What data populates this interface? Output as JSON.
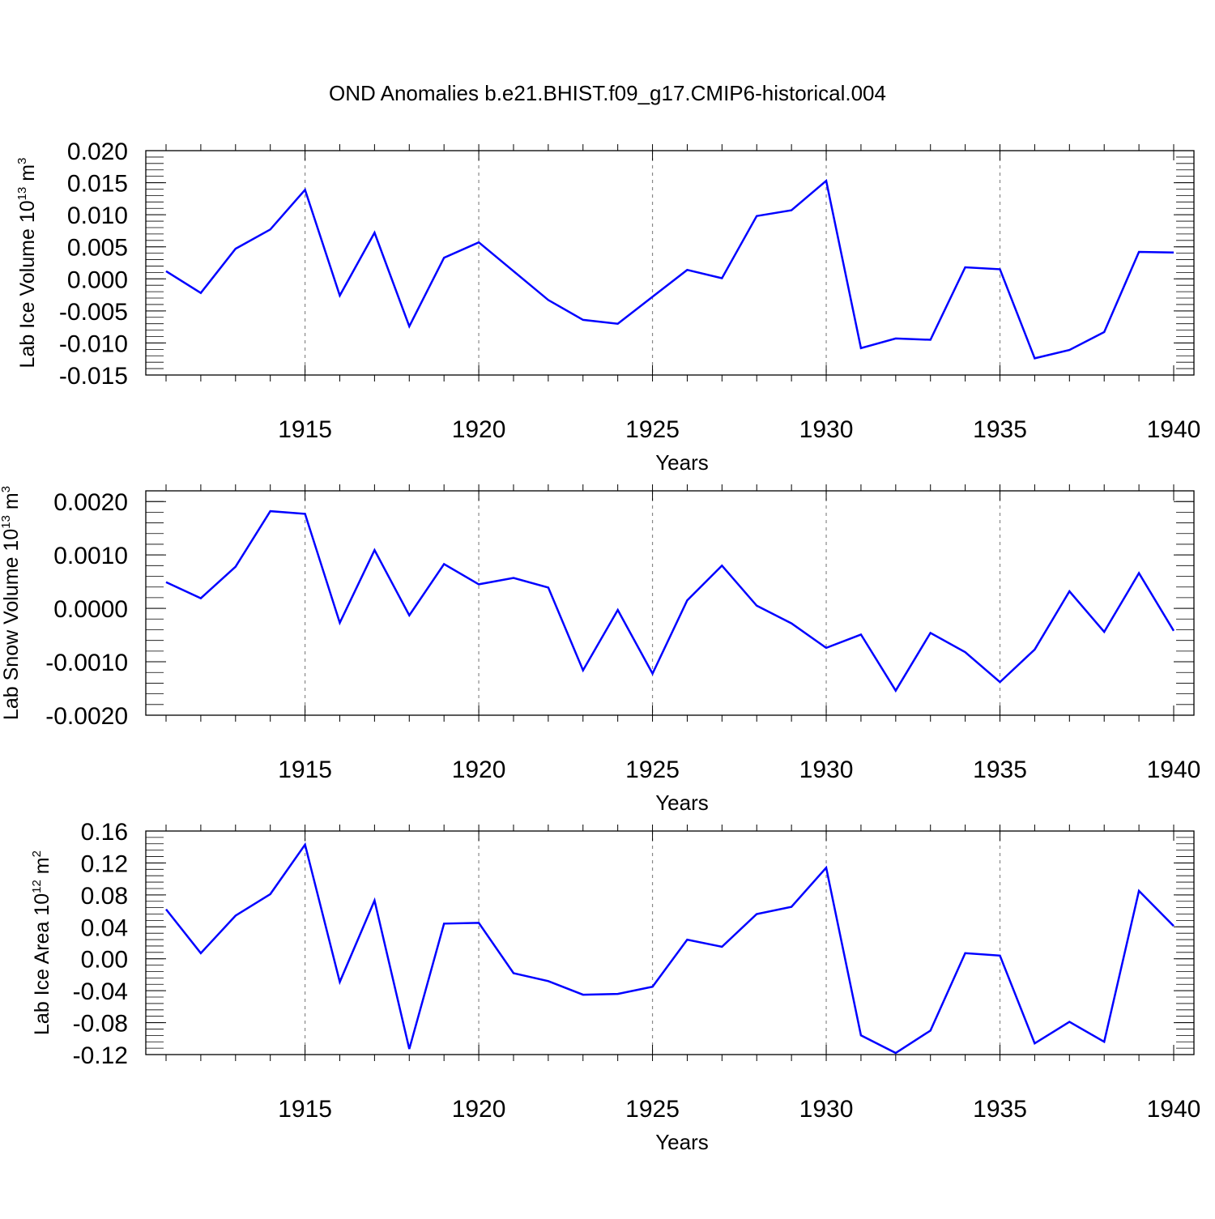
{
  "title": "OND Anomalies b.e21.BHIST.f09_g17.CMIP6-historical.004",
  "line_color": "#0000ff",
  "chart_data": [
    {
      "type": "line",
      "ylabel": "Lab Ice Volume 10",
      "ylabel_exp": "13",
      "ylabel_unit": " m",
      "ylabel_unit_exp": "3",
      "xlabel": "Years",
      "xlim": [
        1911,
        1940
      ],
      "ylim": [
        -0.015,
        0.02
      ],
      "x_ticks": [
        "1915",
        "1920",
        "1925",
        "1930",
        "1935",
        "1940"
      ],
      "y_ticks": [
        "0.020",
        "0.015",
        "0.010",
        "0.005",
        "0.000",
        "-0.005",
        "-0.010",
        "-0.015"
      ],
      "grid": "dashed vertical at major x ticks",
      "x": [
        1911,
        1912,
        1913,
        1914,
        1915,
        1916,
        1917,
        1918,
        1919,
        1920,
        1921,
        1922,
        1923,
        1924,
        1925,
        1926,
        1927,
        1928,
        1929,
        1930,
        1931,
        1932,
        1933,
        1934,
        1935,
        1936,
        1937,
        1938,
        1939,
        1940
      ],
      "series": [
        {
          "values": [
            0.0012,
            -0.0022,
            0.0047,
            0.0077,
            0.0139,
            -0.0026,
            0.0072,
            -0.0074,
            0.0033,
            0.0057,
            0.0012,
            -0.0033,
            -0.0064,
            -0.007,
            -0.0028,
            0.0014,
            0.0001,
            0.0098,
            0.0107,
            0.0153,
            -0.0108,
            -0.0093,
            -0.0095,
            0.0018,
            0.0015,
            -0.0124,
            -0.0111,
            -0.0083,
            0.0042,
            0.0041
          ]
        }
      ]
    },
    {
      "type": "line",
      "ylabel": "Lab Snow Volume 10",
      "ylabel_exp": "13",
      "ylabel_unit": " m",
      "ylabel_unit_exp": "3",
      "xlabel": "Years",
      "xlim": [
        1911,
        1940
      ],
      "ylim": [
        -0.002,
        0.0022
      ],
      "x_ticks": [
        "1915",
        "1920",
        "1925",
        "1930",
        "1935",
        "1940"
      ],
      "y_ticks": [
        "0.0020",
        "0.0010",
        "0.0000",
        "-0.0010",
        "-0.0020"
      ],
      "grid": "dashed vertical at major x ticks",
      "x": [
        1911,
        1912,
        1913,
        1914,
        1915,
        1916,
        1917,
        1918,
        1919,
        1920,
        1921,
        1922,
        1923,
        1924,
        1925,
        1926,
        1927,
        1928,
        1929,
        1930,
        1931,
        1932,
        1933,
        1934,
        1935,
        1936,
        1937,
        1938,
        1939,
        1940
      ],
      "series": [
        {
          "values": [
            0.00049,
            0.00019,
            0.00078,
            0.00182,
            0.00177,
            -0.00027,
            0.00109,
            -0.00013,
            0.00083,
            0.00045,
            0.00057,
            0.00039,
            -0.00116,
            -3e-05,
            -0.00122,
            0.00015,
            0.0008,
            5e-05,
            -0.00028,
            -0.00074,
            -0.00049,
            -0.00154,
            -0.00046,
            -0.00082,
            -0.00138,
            -0.00077,
            0.00032,
            -0.00044,
            0.00066,
            -0.00042
          ]
        }
      ]
    },
    {
      "type": "line",
      "ylabel": "Lab Ice Area 10",
      "ylabel_exp": "12",
      "ylabel_unit": " m",
      "ylabel_unit_exp": "2",
      "xlabel": "Years",
      "xlim": [
        1911,
        1940
      ],
      "ylim": [
        -0.12,
        0.16
      ],
      "x_ticks": [
        "1915",
        "1920",
        "1925",
        "1930",
        "1935",
        "1940"
      ],
      "y_ticks": [
        "0.16",
        "0.12",
        "0.08",
        "0.04",
        "0.00",
        "-0.04",
        "-0.08",
        "-0.12"
      ],
      "grid": "dashed vertical at major x ticks",
      "x": [
        1911,
        1912,
        1913,
        1914,
        1915,
        1916,
        1917,
        1918,
        1919,
        1920,
        1921,
        1922,
        1923,
        1924,
        1925,
        1926,
        1927,
        1928,
        1929,
        1930,
        1931,
        1932,
        1933,
        1934,
        1935,
        1936,
        1937,
        1938,
        1939,
        1940
      ],
      "series": [
        {
          "values": [
            0.062,
            0.007,
            0.054,
            0.081,
            0.143,
            -0.029,
            0.073,
            -0.113,
            0.044,
            0.045,
            -0.018,
            -0.028,
            -0.045,
            -0.044,
            -0.035,
            0.024,
            0.015,
            0.056,
            0.065,
            0.114,
            -0.096,
            -0.118,
            -0.09,
            0.007,
            0.004,
            -0.106,
            -0.079,
            -0.104,
            0.085,
            0.041
          ]
        }
      ]
    }
  ]
}
